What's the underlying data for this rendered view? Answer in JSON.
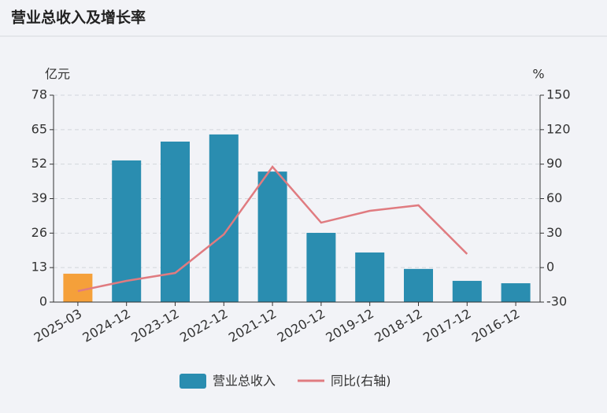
{
  "chart_data": {
    "type": "bar-line",
    "title": "营业总收入及增长率",
    "y_label": "亿元",
    "y2_label": "%",
    "categories": [
      "2025-03",
      "2024-12",
      "2023-12",
      "2022-12",
      "2021-12",
      "2020-12",
      "2019-12",
      "2018-12",
      "2017-12",
      "2016-12"
    ],
    "series": [
      {
        "name": "营业总收入",
        "type": "bar",
        "color": "#2a8db0",
        "colors": [
          "#f5a03a",
          "#2a8db0",
          "#2a8db0",
          "#2a8db0",
          "#2a8db0",
          "#2a8db0",
          "#2a8db0",
          "#2a8db0",
          "#2a8db0",
          "#2a8db0"
        ],
        "values": [
          10.7,
          53.4,
          60.5,
          63.2,
          49.2,
          26.1,
          18.7,
          12.5,
          8.0,
          7.1
        ]
      },
      {
        "name": "同比(右轴)",
        "type": "line",
        "axis": "y2",
        "color": "#e07b80",
        "values": [
          -20.4,
          -11.5,
          -4.7,
          28.9,
          87.7,
          39.1,
          49.4,
          54.2,
          11.8,
          null
        ]
      }
    ],
    "ylim": [
      0,
      78
    ],
    "yticks": [
      0,
      13,
      26,
      39,
      52,
      65,
      78
    ],
    "y2lim": [
      -30,
      150
    ],
    "y2ticks": [
      -30,
      0,
      30,
      60,
      90,
      120,
      150
    ],
    "grid": true
  }
}
